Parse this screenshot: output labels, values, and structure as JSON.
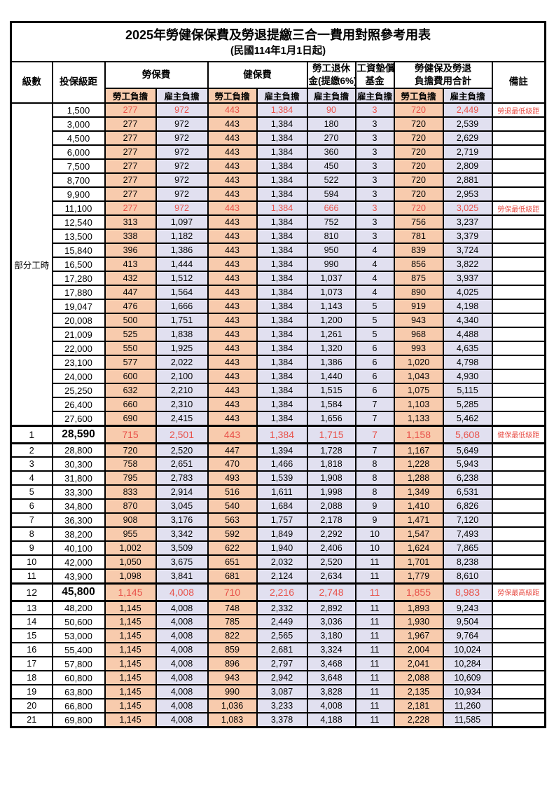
{
  "title": {
    "line1": "2025年勞健保保費及勞退提繳三合一費用對照參考用表",
    "line2": "(民國114年1月1日起)"
  },
  "colors": {
    "employee_share_bg": "#F8CBAD",
    "employer_share_bg": "#E1E0F0",
    "highlight_text": "#E8524A",
    "grid_line": "#000000"
  },
  "header": {
    "level": "級數",
    "salary": "投保級距",
    "labor_group": "勞保費",
    "health_group": "健保費",
    "pension_line1": "勞工退休",
    "pension_line2": "金(提繳6%)",
    "fund_line1": "工資墊償",
    "fund_line2": "基金",
    "total_line1": "勞健保及勞退",
    "total_line2": "負擔費用合計",
    "note": "備註",
    "sub_employee": "勞工負擔",
    "sub_employer": "雇主負擔"
  },
  "table": {
    "part_time_label": "部分工時",
    "part_time_rowspan": 23,
    "rows": [
      {
        "level": "",
        "salary": "1,500",
        "labor_emp": "277",
        "labor_er": "972",
        "health_emp": "443",
        "health_er": "1,384",
        "pension_er": "90",
        "fund_er": "3",
        "total_emp": "720",
        "total_er": "2,449",
        "note": "勞退最低級距",
        "red": true,
        "milestone": false
      },
      {
        "level": "",
        "salary": "3,000",
        "labor_emp": "277",
        "labor_er": "972",
        "health_emp": "443",
        "health_er": "1,384",
        "pension_er": "180",
        "fund_er": "3",
        "total_emp": "720",
        "total_er": "2,539",
        "note": "",
        "red": false,
        "milestone": false
      },
      {
        "level": "",
        "salary": "4,500",
        "labor_emp": "277",
        "labor_er": "972",
        "health_emp": "443",
        "health_er": "1,384",
        "pension_er": "270",
        "fund_er": "3",
        "total_emp": "720",
        "total_er": "2,629",
        "note": "",
        "red": false,
        "milestone": false
      },
      {
        "level": "",
        "salary": "6,000",
        "labor_emp": "277",
        "labor_er": "972",
        "health_emp": "443",
        "health_er": "1,384",
        "pension_er": "360",
        "fund_er": "3",
        "total_emp": "720",
        "total_er": "2,719",
        "note": "",
        "red": false,
        "milestone": false
      },
      {
        "level": "",
        "salary": "7,500",
        "labor_emp": "277",
        "labor_er": "972",
        "health_emp": "443",
        "health_er": "1,384",
        "pension_er": "450",
        "fund_er": "3",
        "total_emp": "720",
        "total_er": "2,809",
        "note": "",
        "red": false,
        "milestone": false
      },
      {
        "level": "",
        "salary": "8,700",
        "labor_emp": "277",
        "labor_er": "972",
        "health_emp": "443",
        "health_er": "1,384",
        "pension_er": "522",
        "fund_er": "3",
        "total_emp": "720",
        "total_er": "2,881",
        "note": "",
        "red": false,
        "milestone": false
      },
      {
        "level": "",
        "salary": "9,900",
        "labor_emp": "277",
        "labor_er": "972",
        "health_emp": "443",
        "health_er": "1,384",
        "pension_er": "594",
        "fund_er": "3",
        "total_emp": "720",
        "total_er": "2,953",
        "note": "",
        "red": false,
        "milestone": false
      },
      {
        "level": "",
        "salary": "11,100",
        "labor_emp": "277",
        "labor_er": "972",
        "health_emp": "443",
        "health_er": "1,384",
        "pension_er": "666",
        "fund_er": "3",
        "total_emp": "720",
        "total_er": "3,025",
        "note": "勞保最低級距",
        "red": true,
        "milestone": false
      },
      {
        "level": "",
        "salary": "12,540",
        "labor_emp": "313",
        "labor_er": "1,097",
        "health_emp": "443",
        "health_er": "1,384",
        "pension_er": "752",
        "fund_er": "3",
        "total_emp": "756",
        "total_er": "3,237",
        "note": "",
        "red": false,
        "milestone": false
      },
      {
        "level": "",
        "salary": "13,500",
        "labor_emp": "338",
        "labor_er": "1,182",
        "health_emp": "443",
        "health_er": "1,384",
        "pension_er": "810",
        "fund_er": "3",
        "total_emp": "781",
        "total_er": "3,379",
        "note": "",
        "red": false,
        "milestone": false
      },
      {
        "level": "",
        "salary": "15,840",
        "labor_emp": "396",
        "labor_er": "1,386",
        "health_emp": "443",
        "health_er": "1,384",
        "pension_er": "950",
        "fund_er": "4",
        "total_emp": "839",
        "total_er": "3,724",
        "note": "",
        "red": false,
        "milestone": false
      },
      {
        "level": "",
        "salary": "16,500",
        "labor_emp": "413",
        "labor_er": "1,444",
        "health_emp": "443",
        "health_er": "1,384",
        "pension_er": "990",
        "fund_er": "4",
        "total_emp": "856",
        "total_er": "3,822",
        "note": "",
        "red": false,
        "milestone": false
      },
      {
        "level": "",
        "salary": "17,280",
        "labor_emp": "432",
        "labor_er": "1,512",
        "health_emp": "443",
        "health_er": "1,384",
        "pension_er": "1,037",
        "fund_er": "4",
        "total_emp": "875",
        "total_er": "3,937",
        "note": "",
        "red": false,
        "milestone": false
      },
      {
        "level": "",
        "salary": "17,880",
        "labor_emp": "447",
        "labor_er": "1,564",
        "health_emp": "443",
        "health_er": "1,384",
        "pension_er": "1,073",
        "fund_er": "4",
        "total_emp": "890",
        "total_er": "4,025",
        "note": "",
        "red": false,
        "milestone": false
      },
      {
        "level": "",
        "salary": "19,047",
        "labor_emp": "476",
        "labor_er": "1,666",
        "health_emp": "443",
        "health_er": "1,384",
        "pension_er": "1,143",
        "fund_er": "5",
        "total_emp": "919",
        "total_er": "4,198",
        "note": "",
        "red": false,
        "milestone": false
      },
      {
        "level": "",
        "salary": "20,008",
        "labor_emp": "500",
        "labor_er": "1,751",
        "health_emp": "443",
        "health_er": "1,384",
        "pension_er": "1,200",
        "fund_er": "5",
        "total_emp": "943",
        "total_er": "4,340",
        "note": "",
        "red": false,
        "milestone": false
      },
      {
        "level": "",
        "salary": "21,009",
        "labor_emp": "525",
        "labor_er": "1,838",
        "health_emp": "443",
        "health_er": "1,384",
        "pension_er": "1,261",
        "fund_er": "5",
        "total_emp": "968",
        "total_er": "4,488",
        "note": "",
        "red": false,
        "milestone": false
      },
      {
        "level": "",
        "salary": "22,000",
        "labor_emp": "550",
        "labor_er": "1,925",
        "health_emp": "443",
        "health_er": "1,384",
        "pension_er": "1,320",
        "fund_er": "6",
        "total_emp": "993",
        "total_er": "4,635",
        "note": "",
        "red": false,
        "milestone": false
      },
      {
        "level": "",
        "salary": "23,100",
        "labor_emp": "577",
        "labor_er": "2,022",
        "health_emp": "443",
        "health_er": "1,384",
        "pension_er": "1,386",
        "fund_er": "6",
        "total_emp": "1,020",
        "total_er": "4,798",
        "note": "",
        "red": false,
        "milestone": false
      },
      {
        "level": "",
        "salary": "24,000",
        "labor_emp": "600",
        "labor_er": "2,100",
        "health_emp": "443",
        "health_er": "1,384",
        "pension_er": "1,440",
        "fund_er": "6",
        "total_emp": "1,043",
        "total_er": "4,930",
        "note": "",
        "red": false,
        "milestone": false
      },
      {
        "level": "",
        "salary": "25,250",
        "labor_emp": "632",
        "labor_er": "2,210",
        "health_emp": "443",
        "health_er": "1,384",
        "pension_er": "1,515",
        "fund_er": "6",
        "total_emp": "1,075",
        "total_er": "5,115",
        "note": "",
        "red": false,
        "milestone": false
      },
      {
        "level": "",
        "salary": "26,400",
        "labor_emp": "660",
        "labor_er": "2,310",
        "health_emp": "443",
        "health_er": "1,384",
        "pension_er": "1,584",
        "fund_er": "7",
        "total_emp": "1,103",
        "total_er": "5,285",
        "note": "",
        "red": false,
        "milestone": false
      },
      {
        "level": "",
        "salary": "27,600",
        "labor_emp": "690",
        "labor_er": "2,415",
        "health_emp": "443",
        "health_er": "1,384",
        "pension_er": "1,656",
        "fund_er": "7",
        "total_emp": "1,133",
        "total_er": "5,462",
        "note": "",
        "red": false,
        "milestone": false
      },
      {
        "level": "1",
        "salary": "28,590",
        "labor_emp": "715",
        "labor_er": "2,501",
        "health_emp": "443",
        "health_er": "1,384",
        "pension_er": "1,715",
        "fund_er": "7",
        "total_emp": "1,158",
        "total_er": "5,608",
        "note": "健保最低級距",
        "red": true,
        "milestone": true
      },
      {
        "level": "2",
        "salary": "28,800",
        "labor_emp": "720",
        "labor_er": "2,520",
        "health_emp": "447",
        "health_er": "1,394",
        "pension_er": "1,728",
        "fund_er": "7",
        "total_emp": "1,167",
        "total_er": "5,649",
        "note": "",
        "red": false,
        "milestone": false
      },
      {
        "level": "3",
        "salary": "30,300",
        "labor_emp": "758",
        "labor_er": "2,651",
        "health_emp": "470",
        "health_er": "1,466",
        "pension_er": "1,818",
        "fund_er": "8",
        "total_emp": "1,228",
        "total_er": "5,943",
        "note": "",
        "red": false,
        "milestone": false
      },
      {
        "level": "4",
        "salary": "31,800",
        "labor_emp": "795",
        "labor_er": "2,783",
        "health_emp": "493",
        "health_er": "1,539",
        "pension_er": "1,908",
        "fund_er": "8",
        "total_emp": "1,288",
        "total_er": "6,238",
        "note": "",
        "red": false,
        "milestone": false
      },
      {
        "level": "5",
        "salary": "33,300",
        "labor_emp": "833",
        "labor_er": "2,914",
        "health_emp": "516",
        "health_er": "1,611",
        "pension_er": "1,998",
        "fund_er": "8",
        "total_emp": "1,349",
        "total_er": "6,531",
        "note": "",
        "red": false,
        "milestone": false
      },
      {
        "level": "6",
        "salary": "34,800",
        "labor_emp": "870",
        "labor_er": "3,045",
        "health_emp": "540",
        "health_er": "1,684",
        "pension_er": "2,088",
        "fund_er": "9",
        "total_emp": "1,410",
        "total_er": "6,826",
        "note": "",
        "red": false,
        "milestone": false
      },
      {
        "level": "7",
        "salary": "36,300",
        "labor_emp": "908",
        "labor_er": "3,176",
        "health_emp": "563",
        "health_er": "1,757",
        "pension_er": "2,178",
        "fund_er": "9",
        "total_emp": "1,471",
        "total_er": "7,120",
        "note": "",
        "red": false,
        "milestone": false
      },
      {
        "level": "8",
        "salary": "38,200",
        "labor_emp": "955",
        "labor_er": "3,342",
        "health_emp": "592",
        "health_er": "1,849",
        "pension_er": "2,292",
        "fund_er": "10",
        "total_emp": "1,547",
        "total_er": "7,493",
        "note": "",
        "red": false,
        "milestone": false
      },
      {
        "level": "9",
        "salary": "40,100",
        "labor_emp": "1,002",
        "labor_er": "3,509",
        "health_emp": "622",
        "health_er": "1,940",
        "pension_er": "2,406",
        "fund_er": "10",
        "total_emp": "1,624",
        "total_er": "7,865",
        "note": "",
        "red": false,
        "milestone": false
      },
      {
        "level": "10",
        "salary": "42,000",
        "labor_emp": "1,050",
        "labor_er": "3,675",
        "health_emp": "651",
        "health_er": "2,032",
        "pension_er": "2,520",
        "fund_er": "11",
        "total_emp": "1,701",
        "total_er": "8,238",
        "note": "",
        "red": false,
        "milestone": false
      },
      {
        "level": "11",
        "salary": "43,900",
        "labor_emp": "1,098",
        "labor_er": "3,841",
        "health_emp": "681",
        "health_er": "2,124",
        "pension_er": "2,634",
        "fund_er": "11",
        "total_emp": "1,779",
        "total_er": "8,610",
        "note": "",
        "red": false,
        "milestone": false
      },
      {
        "level": "12",
        "salary": "45,800",
        "labor_emp": "1,145",
        "labor_er": "4,008",
        "health_emp": "710",
        "health_er": "2,216",
        "pension_er": "2,748",
        "fund_er": "11",
        "total_emp": "1,855",
        "total_er": "8,983",
        "note": "勞保最高級距",
        "red": true,
        "milestone": true
      },
      {
        "level": "13",
        "salary": "48,200",
        "labor_emp": "1,145",
        "labor_er": "4,008",
        "health_emp": "748",
        "health_er": "2,332",
        "pension_er": "2,892",
        "fund_er": "11",
        "total_emp": "1,893",
        "total_er": "9,243",
        "note": "",
        "red": false,
        "milestone": false
      },
      {
        "level": "14",
        "salary": "50,600",
        "labor_emp": "1,145",
        "labor_er": "4,008",
        "health_emp": "785",
        "health_er": "2,449",
        "pension_er": "3,036",
        "fund_er": "11",
        "total_emp": "1,930",
        "total_er": "9,504",
        "note": "",
        "red": false,
        "milestone": false
      },
      {
        "level": "15",
        "salary": "53,000",
        "labor_emp": "1,145",
        "labor_er": "4,008",
        "health_emp": "822",
        "health_er": "2,565",
        "pension_er": "3,180",
        "fund_er": "11",
        "total_emp": "1,967",
        "total_er": "9,764",
        "note": "",
        "red": false,
        "milestone": false
      },
      {
        "level": "16",
        "salary": "55,400",
        "labor_emp": "1,145",
        "labor_er": "4,008",
        "health_emp": "859",
        "health_er": "2,681",
        "pension_er": "3,324",
        "fund_er": "11",
        "total_emp": "2,004",
        "total_er": "10,024",
        "note": "",
        "red": false,
        "milestone": false
      },
      {
        "level": "17",
        "salary": "57,800",
        "labor_emp": "1,145",
        "labor_er": "4,008",
        "health_emp": "896",
        "health_er": "2,797",
        "pension_er": "3,468",
        "fund_er": "11",
        "total_emp": "2,041",
        "total_er": "10,284",
        "note": "",
        "red": false,
        "milestone": false
      },
      {
        "level": "18",
        "salary": "60,800",
        "labor_emp": "1,145",
        "labor_er": "4,008",
        "health_emp": "943",
        "health_er": "2,942",
        "pension_er": "3,648",
        "fund_er": "11",
        "total_emp": "2,088",
        "total_er": "10,609",
        "note": "",
        "red": false,
        "milestone": false
      },
      {
        "level": "19",
        "salary": "63,800",
        "labor_emp": "1,145",
        "labor_er": "4,008",
        "health_emp": "990",
        "health_er": "3,087",
        "pension_er": "3,828",
        "fund_er": "11",
        "total_emp": "2,135",
        "total_er": "10,934",
        "note": "",
        "red": false,
        "milestone": false
      },
      {
        "level": "20",
        "salary": "66,800",
        "labor_emp": "1,145",
        "labor_er": "4,008",
        "health_emp": "1,036",
        "health_er": "3,233",
        "pension_er": "4,008",
        "fund_er": "11",
        "total_emp": "2,181",
        "total_er": "11,260",
        "note": "",
        "red": false,
        "milestone": false
      },
      {
        "level": "21",
        "salary": "69,800",
        "labor_emp": "1,145",
        "labor_er": "4,008",
        "health_emp": "1,083",
        "health_er": "3,378",
        "pension_er": "4,188",
        "fund_er": "11",
        "total_emp": "2,228",
        "total_er": "11,585",
        "note": "",
        "red": false,
        "milestone": false
      }
    ]
  }
}
